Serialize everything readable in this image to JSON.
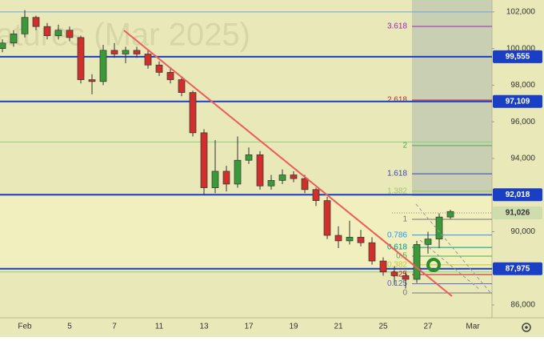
{
  "chart_data": {
    "type": "candlestick",
    "watermark": "atures (Mar 2025)",
    "categories": [
      null,
      null,
      "Feb",
      null,
      null,
      null,
      "5",
      null,
      null,
      null,
      "7",
      null,
      null,
      null,
      "11",
      null,
      null,
      null,
      "13",
      null,
      null,
      null,
      "17",
      null,
      null,
      null,
      "19",
      null,
      null,
      null,
      "21",
      null,
      null,
      null,
      "25",
      null,
      null,
      null,
      "27",
      null,
      null,
      null,
      "Mar",
      null
    ],
    "open": [
      100000,
      100300,
      100800,
      101700,
      101200,
      100700,
      101000,
      100600,
      98300,
      98200,
      99900,
      99700,
      99900,
      99700,
      99100,
      98700,
      98300,
      97600,
      95400,
      92400,
      93300,
      92600,
      93900,
      94200,
      92500,
      92800,
      93100,
      92900,
      92300,
      91700,
      89800,
      89500,
      89700,
      89400,
      88400,
      87800,
      87600,
      87400,
      89300,
      89600,
      90800,
      null,
      null,
      null
    ],
    "high": [
      100500,
      101000,
      102100,
      101800,
      101400,
      101300,
      101200,
      100700,
      98600,
      100200,
      100300,
      100100,
      100100,
      99900,
      99300,
      98900,
      98500,
      97700,
      95600,
      95000,
      93600,
      95200,
      94600,
      94400,
      93100,
      93400,
      93300,
      93100,
      92400,
      91900,
      90300,
      90600,
      90100,
      89700,
      88600,
      88100,
      87800,
      89500,
      90000,
      91000,
      91200,
      null,
      null,
      null
    ],
    "low": [
      99800,
      100100,
      100600,
      101000,
      100500,
      100500,
      100400,
      98100,
      97500,
      98000,
      99500,
      99200,
      99500,
      98900,
      98500,
      98100,
      97400,
      95200,
      92000,
      92100,
      92200,
      92400,
      93700,
      92300,
      92300,
      92600,
      92700,
      92100,
      91400,
      89600,
      89100,
      89300,
      89200,
      88200,
      87600,
      87100,
      86900,
      87200,
      88800,
      89100,
      90700,
      null,
      null,
      null
    ],
    "close": [
      100300,
      100800,
      101700,
      101200,
      100700,
      101000,
      100600,
      98300,
      98200,
      99900,
      99700,
      99900,
      99700,
      99100,
      98700,
      98300,
      97600,
      95400,
      92400,
      93300,
      92600,
      93900,
      94200,
      92500,
      92800,
      93100,
      92900,
      92300,
      91700,
      89800,
      89500,
      89700,
      89400,
      88400,
      87800,
      87600,
      87400,
      89300,
      89600,
      90800,
      91100,
      null,
      null,
      null
    ],
    "up_color": "#3a9a3a",
    "down_color": "#d0302c",
    "ylim": [
      85300,
      102650
    ],
    "yticks": [
      {
        "value": 86000,
        "label": "86,000"
      },
      {
        "value": 88000,
        "label": "88,000"
      },
      {
        "value": 90000,
        "label": "90,000"
      },
      {
        "value": 92000,
        "label": "92,000"
      },
      {
        "value": 94000,
        "label": "94,000"
      },
      {
        "value": 96000,
        "label": "96,000"
      },
      {
        "value": 98000,
        "label": "98,000"
      },
      {
        "value": 100000,
        "label": "100,000"
      },
      {
        "value": 102000,
        "label": "102,000"
      }
    ],
    "levels": [
      {
        "value": 99555,
        "label": "99,555"
      },
      {
        "value": 97109,
        "label": "97,109"
      },
      {
        "value": 92018,
        "label": "92,018"
      },
      {
        "value": 87975,
        "label": "87,975"
      }
    ],
    "level_color": "#1a3fc4",
    "last_price": {
      "value": 91026,
      "label": "91,026"
    },
    "thin_lines": [
      {
        "value": 102000,
        "color": "#6fa8dc"
      },
      {
        "value": 94900,
        "color": "#8fd07a"
      },
      {
        "value": 87800,
        "color": "#8fd07a"
      }
    ],
    "fibonacci": {
      "start": 86656,
      "end": 90678,
      "levels": [
        3.618,
        2.618,
        2,
        1.618,
        1.382,
        1,
        0.786,
        0.618,
        0.5,
        0.382,
        0.25,
        0.125,
        0
      ],
      "colors": [
        "#9c27b0",
        "#c62828",
        "#4caf50",
        "#3949ab",
        "#9ccc65",
        "#777777",
        "#2196f3",
        "#009688",
        "#4caf50",
        "#c0ca33",
        "#b71c1c",
        "#5c6bc0",
        "#777777"
      ]
    }
  }
}
